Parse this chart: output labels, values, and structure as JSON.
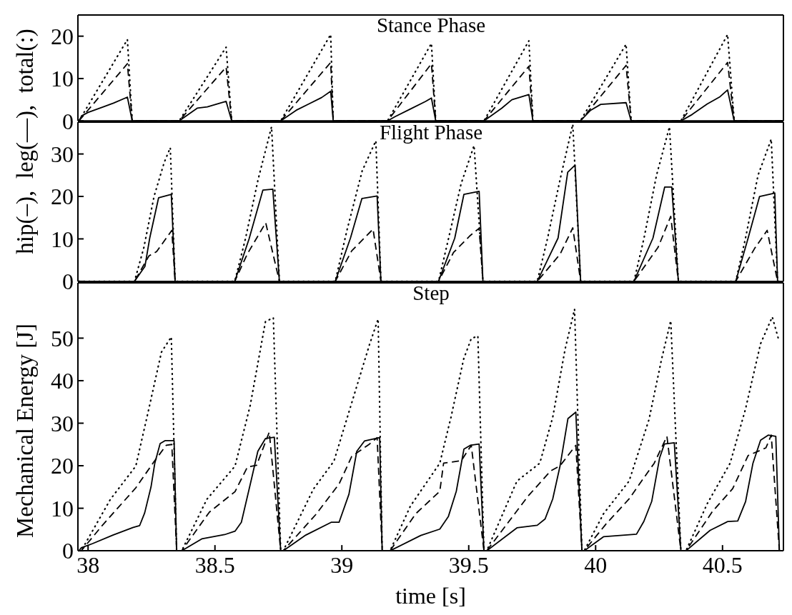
{
  "chart_data": [
    {
      "type": "line",
      "title": "Stance Phase",
      "xlim": [
        37.96,
        40.74
      ],
      "xticks": [
        38,
        38.5,
        39,
        39.5,
        40,
        40.5
      ],
      "ylim": [
        0,
        25
      ],
      "yticks": [
        0,
        10,
        20
      ],
      "tick_labels": "y",
      "series": [
        {
          "color": "#000000",
          "line_style": "solid",
          "x": [
            37.964,
            37.975,
            38.0,
            38.06,
            38.1,
            38.155,
            38.174,
            38.359,
            38.43,
            38.47,
            38.52,
            38.544,
            38.566,
            38.759,
            38.82,
            38.87,
            38.92,
            38.956,
            38.966,
            39.18,
            39.21,
            39.27,
            39.33,
            39.353,
            39.37,
            39.56,
            39.63,
            39.67,
            39.737,
            39.753,
            39.94,
            39.98,
            40.02,
            40.12,
            40.14,
            40.336,
            40.38,
            40.44,
            40.49,
            40.52,
            40.546,
            40.736
          ],
          "values": [
            0,
            1.2,
            2.0,
            3.3,
            4.2,
            5.6,
            0,
            0,
            3.0,
            3.3,
            4.2,
            4.6,
            0,
            0,
            2.5,
            4.0,
            5.5,
            7.0,
            0,
            0,
            1.0,
            2.8,
            4.6,
            5.4,
            0,
            0,
            3.0,
            5.0,
            6.2,
            0,
            0,
            2.5,
            3.9,
            4.3,
            0,
            0,
            1.5,
            4.0,
            5.7,
            7.3,
            0,
            0
          ]
        },
        {
          "color": "#000000",
          "line_style": "dashed",
          "x": [
            37.964,
            38.155,
            38.174,
            38.359,
            38.544,
            38.566,
            38.759,
            38.956,
            38.966,
            39.18,
            39.353,
            39.37,
            39.56,
            39.737,
            39.753,
            39.94,
            40.12,
            40.14,
            40.336,
            40.52,
            40.546,
            40.736
          ],
          "values": [
            0,
            13.5,
            0,
            0,
            12.7,
            0,
            0,
            13.8,
            0,
            0,
            13.5,
            0,
            0,
            12.9,
            0,
            0,
            13.1,
            0,
            0,
            13.8,
            0,
            0
          ]
        },
        {
          "color": "#000000",
          "line_style": "dotted",
          "x": [
            37.964,
            38.155,
            38.174,
            38.359,
            38.544,
            38.566,
            38.759,
            38.956,
            38.966,
            39.18,
            39.353,
            39.37,
            39.56,
            39.737,
            39.753,
            39.94,
            40.12,
            40.14,
            40.336,
            40.52,
            40.546,
            40.736
          ],
          "values": [
            0,
            19.2,
            0,
            0,
            17.4,
            0,
            0,
            20.4,
            0,
            0,
            18.3,
            0,
            0,
            18.9,
            0,
            0,
            18.1,
            0,
            0,
            20.4,
            0,
            0
          ]
        }
      ]
    },
    {
      "type": "line",
      "title": "Flight Phase",
      "ylabel": "hip(–),  leg(––),  total(:)",
      "xlim": [
        37.96,
        40.74
      ],
      "xticks": [
        38,
        38.5,
        39,
        39.5,
        40,
        40.5
      ],
      "ylim": [
        0,
        37.5
      ],
      "yticks": [
        0,
        10,
        20,
        30
      ],
      "tick_labels": "y",
      "series": [
        {
          "color": "#000000",
          "line_style": "solid",
          "x": [
            37.964,
            38.183,
            38.224,
            38.243,
            38.278,
            38.328,
            38.343,
            38.578,
            38.634,
            38.689,
            38.728,
            38.754,
            38.974,
            39.034,
            39.079,
            39.139,
            39.154,
            39.381,
            39.445,
            39.481,
            39.541,
            39.556,
            39.77,
            39.852,
            39.89,
            39.919,
            39.941,
            40.151,
            40.226,
            40.272,
            40.3,
            40.326,
            40.552,
            40.601,
            40.646,
            40.706,
            40.717,
            40.736
          ],
          "values": [
            0,
            0,
            3.5,
            10.2,
            19.7,
            20.5,
            0,
            0,
            9.9,
            21.5,
            21.7,
            0,
            0,
            10.2,
            19.5,
            20.1,
            0,
            0,
            10.2,
            20.5,
            21.2,
            0,
            0,
            10.2,
            25.7,
            27.4,
            0,
            0,
            10.2,
            22.2,
            22.2,
            0,
            0,
            10.2,
            20.0,
            20.8,
            0,
            0
          ]
        },
        {
          "color": "#000000",
          "line_style": "dashed",
          "x": [
            37.964,
            38.183,
            38.24,
            38.27,
            38.33,
            38.343,
            38.578,
            38.628,
            38.7,
            38.754,
            38.974,
            39.039,
            39.123,
            39.154,
            39.381,
            39.44,
            39.506,
            39.541,
            39.556,
            39.77,
            39.86,
            39.91,
            39.941,
            40.151,
            40.246,
            40.296,
            40.326,
            40.552,
            40.626,
            40.676,
            40.717,
            40.736
          ],
          "values": [
            0,
            0,
            6.0,
            7.0,
            12.0,
            0,
            0,
            6.5,
            13.8,
            0,
            0,
            7.2,
            12.3,
            0,
            0,
            6.8,
            10.8,
            12.5,
            0,
            0,
            6.4,
            12.6,
            0,
            0,
            8.0,
            15.3,
            0,
            0,
            7.7,
            12.0,
            0,
            0
          ]
        },
        {
          "color": "#000000",
          "line_style": "dotted",
          "x": [
            37.964,
            38.183,
            38.22,
            38.26,
            38.3,
            38.324,
            38.343,
            38.578,
            38.62,
            38.67,
            38.723,
            38.754,
            38.974,
            39.02,
            39.08,
            39.134,
            39.154,
            39.381,
            39.42,
            39.47,
            39.521,
            39.556,
            39.77,
            39.81,
            39.86,
            39.91,
            39.941,
            40.151,
            40.19,
            40.24,
            40.291,
            40.326,
            40.552,
            40.59,
            40.64,
            40.692,
            40.717,
            40.736
          ],
          "values": [
            0,
            0,
            8,
            20,
            28,
            31.5,
            0,
            0,
            10,
            24,
            36.4,
            0,
            0,
            12,
            26,
            33.1,
            0,
            0,
            10,
            23,
            32,
            0,
            0,
            10,
            24,
            37,
            0,
            0,
            10,
            25,
            36.4,
            0,
            0,
            10,
            25,
            33.5,
            0,
            0
          ]
        }
      ]
    },
    {
      "type": "line",
      "title": "Step",
      "ylabel": "Mechanical Energy [J]",
      "xlabel": "time [s]",
      "xlim": [
        37.96,
        40.74
      ],
      "xticks": [
        38,
        38.5,
        39,
        39.5,
        40,
        40.5
      ],
      "ylim": [
        0,
        63
      ],
      "yticks": [
        0,
        10,
        20,
        30,
        40,
        50
      ],
      "series": [
        {
          "color": "#000000",
          "line_style": "solid",
          "x": [
            37.964,
            37.973,
            38.018,
            38.098,
            38.178,
            38.203,
            38.223,
            38.248,
            38.263,
            38.284,
            38.303,
            38.339,
            38.349,
            38.369,
            38.448,
            38.538,
            38.579,
            38.604,
            38.644,
            38.669,
            38.699,
            38.734,
            38.759,
            38.769,
            38.858,
            38.958,
            38.989,
            39.028,
            39.059,
            39.089,
            39.149,
            39.159,
            39.19,
            39.311,
            39.386,
            39.42,
            39.451,
            39.481,
            39.506,
            39.541,
            39.56,
            39.571,
            39.69,
            39.77,
            39.801,
            39.831,
            39.86,
            39.891,
            39.922,
            39.946,
            39.955,
            40.031,
            40.161,
            40.19,
            40.221,
            40.252,
            40.271,
            40.31,
            40.336,
            40.356,
            40.451,
            40.521,
            40.56,
            40.591,
            40.62,
            40.65,
            40.68,
            40.71,
            40.724,
            40.736
          ],
          "values": [
            0,
            0.7,
            1.7,
            3.7,
            5.5,
            5.9,
            8.9,
            15.0,
            20.6,
            25.2,
            25.9,
            25.9,
            0,
            0,
            2.8,
            3.8,
            4.6,
            6.7,
            16.9,
            23.4,
            26.4,
            26.7,
            0,
            0,
            3.7,
            6.7,
            6.7,
            13.3,
            23.4,
            25.8,
            26.6,
            0,
            0,
            3.6,
            5.1,
            8.1,
            14.0,
            23.9,
            24.8,
            25.1,
            0,
            0,
            5.4,
            6.0,
            7.5,
            12.2,
            20.0,
            31.1,
            32.6,
            0,
            0,
            3.3,
            3.9,
            6.9,
            11.6,
            21.8,
            25.1,
            25.4,
            0,
            0,
            4.8,
            6.9,
            7.0,
            11.6,
            20.6,
            26.0,
            27.2,
            26.9,
            0,
            0
          ]
        },
        {
          "color": "#000000",
          "line_style": "dashed",
          "x": [
            37.964,
            37.973,
            38.058,
            38.188,
            38.258,
            38.308,
            38.33,
            38.349,
            38.369,
            38.478,
            38.579,
            38.628,
            38.664,
            38.714,
            38.759,
            38.769,
            38.897,
            38.989,
            39.039,
            39.109,
            39.139,
            39.159,
            39.19,
            39.291,
            39.386,
            39.401,
            39.471,
            39.51,
            39.56,
            39.571,
            39.733,
            39.823,
            39.86,
            39.922,
            39.946,
            39.955,
            40.041,
            40.132,
            40.181,
            40.231,
            40.281,
            40.336,
            40.356,
            40.461,
            40.54,
            40.601,
            40.671,
            40.692,
            40.724,
            40.736
          ],
          "values": [
            0,
            0,
            6.1,
            14.8,
            20.8,
            24.8,
            25,
            0,
            0,
            9.1,
            13.9,
            19.7,
            20.1,
            27.9,
            0,
            0,
            8.5,
            15.7,
            22.2,
            25.1,
            26.6,
            0,
            0,
            8.7,
            14.0,
            20.6,
            21.2,
            24.8,
            0,
            0,
            12.8,
            18.8,
            20.0,
            24.8,
            0,
            0,
            6.3,
            12.2,
            16.4,
            20.6,
            26.9,
            0,
            0,
            9.3,
            14.6,
            22.4,
            24.2,
            27.2,
            0,
            0
          ]
        },
        {
          "color": "#000000",
          "line_style": "dotted",
          "x": [
            37.964,
            37.973,
            38.088,
            38.188,
            38.238,
            38.289,
            38.328,
            38.349,
            38.369,
            38.468,
            38.579,
            38.639,
            38.699,
            38.73,
            38.759,
            38.769,
            38.888,
            38.969,
            39.039,
            39.109,
            39.143,
            39.159,
            39.19,
            39.27,
            39.386,
            39.43,
            39.48,
            39.51,
            39.536,
            39.56,
            39.571,
            39.69,
            39.78,
            39.831,
            39.88,
            39.917,
            39.946,
            39.955,
            40.031,
            40.132,
            40.21,
            40.26,
            40.296,
            40.336,
            40.356,
            40.44,
            40.53,
            40.59,
            40.65,
            40.696,
            40.72
          ],
          "values": [
            0,
            0,
            12.1,
            19.9,
            33,
            46.7,
            50.3,
            0,
            0,
            12.1,
            19.9,
            34.2,
            53.9,
            54.8,
            0,
            0,
            14.5,
            21.1,
            34.8,
            48.5,
            54.5,
            0,
            0,
            10.5,
            20.6,
            31.4,
            45.1,
            49.9,
            50.5,
            0,
            0,
            16.4,
            20.6,
            31.4,
            47.5,
            56.8,
            0,
            0,
            8.7,
            16.4,
            30.8,
            45.1,
            54.1,
            0,
            0,
            11.1,
            20.6,
            33.2,
            48.7,
            55.0,
            49.9
          ]
        }
      ]
    }
  ]
}
